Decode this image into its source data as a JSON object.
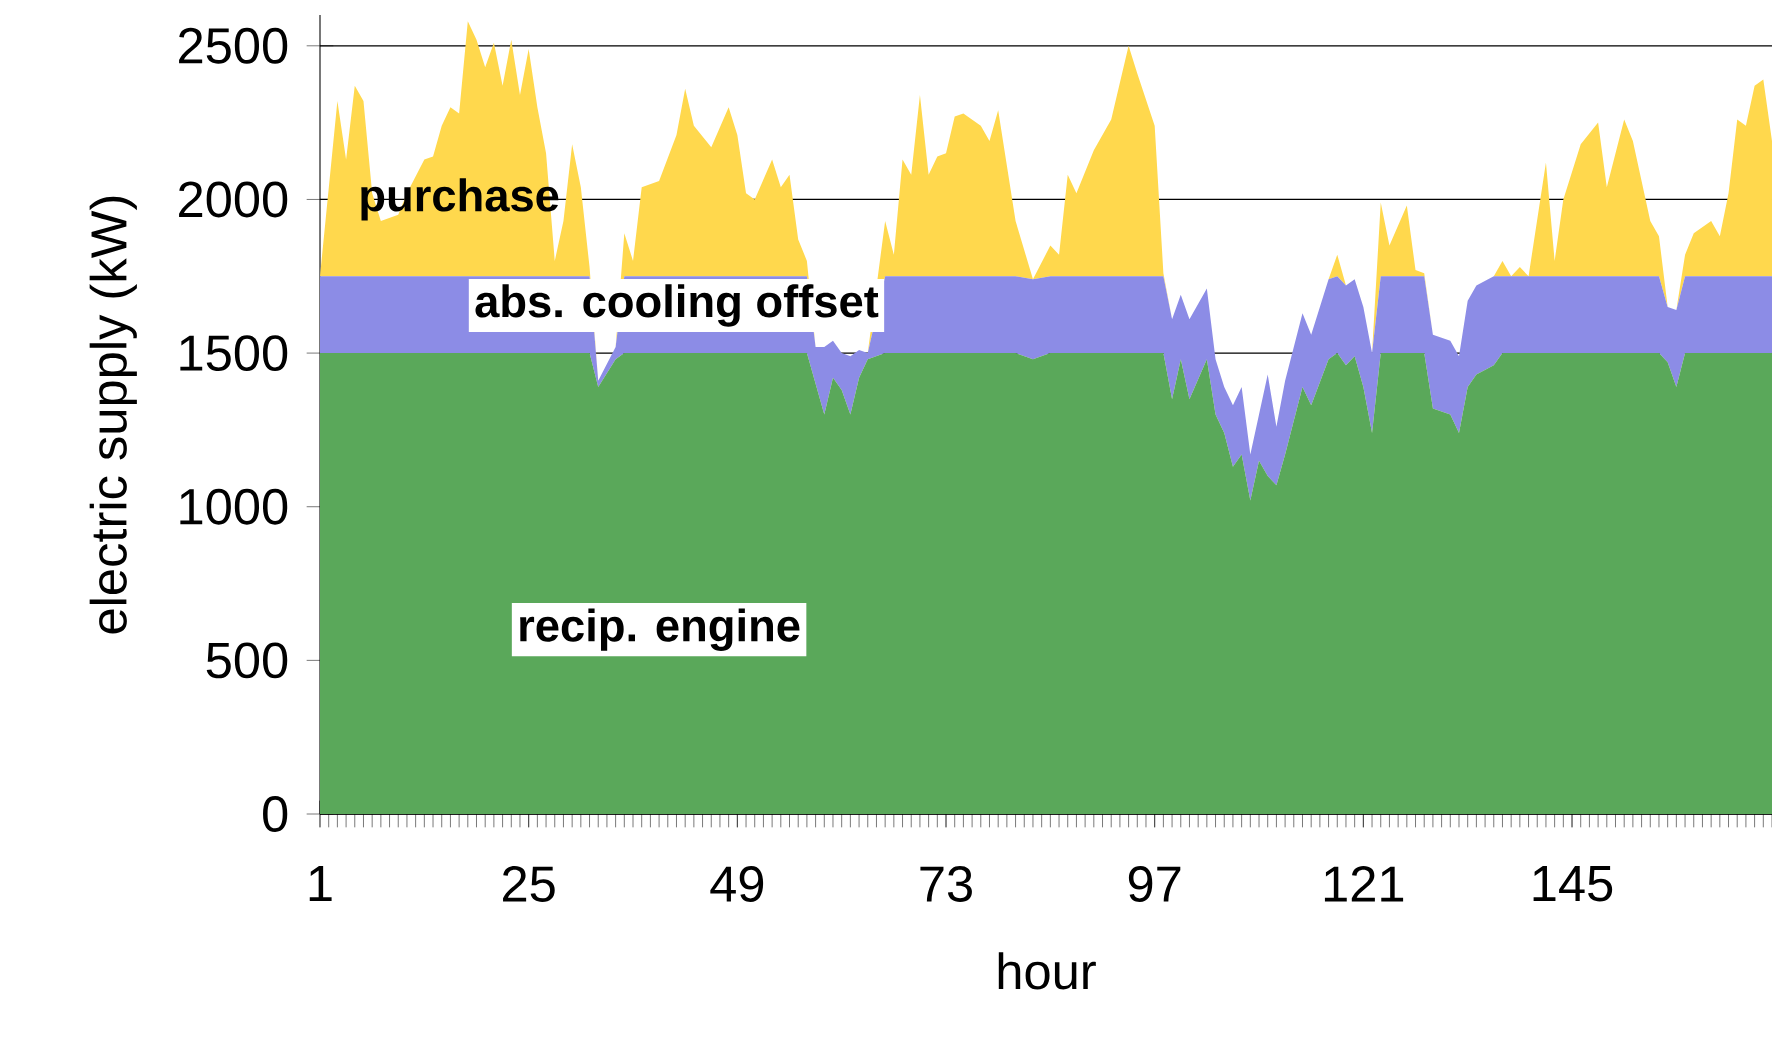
{
  "chart_data": {
    "type": "area",
    "stacked": true,
    "xlabel": "hour",
    "ylabel": "electric supply (kW)",
    "x": [
      1,
      3,
      4,
      5,
      6,
      7,
      8,
      10,
      11,
      13,
      14,
      15,
      16,
      17,
      18,
      19,
      20,
      21,
      22,
      23,
      24,
      25,
      26,
      27,
      28,
      29,
      30,
      31,
      32,
      33,
      35,
      36,
      37,
      38,
      40,
      42,
      43,
      44,
      46,
      48,
      49,
      50,
      51,
      53,
      54,
      55,
      56,
      57,
      58,
      59,
      60,
      61,
      62,
      63,
      64,
      66,
      67,
      68,
      69,
      70,
      71,
      72,
      73,
      74,
      75,
      77,
      78,
      79,
      81,
      83,
      85,
      86,
      87,
      88,
      90,
      92,
      94,
      95,
      97,
      98,
      99,
      100,
      101,
      103,
      104,
      105,
      106,
      107,
      108,
      109,
      110,
      111,
      112,
      114,
      115,
      117,
      118,
      119,
      120,
      121,
      122,
      123,
      124,
      126,
      127,
      128,
      129,
      131,
      132,
      133,
      134,
      136,
      137,
      138,
      139,
      140,
      142,
      143,
      144,
      146,
      148,
      149,
      151,
      152,
      154,
      155,
      156,
      157,
      158,
      159,
      161,
      162,
      163,
      164,
      165,
      166,
      167,
      168
    ],
    "series": [
      {
        "name": "recip. engine",
        "color": "#5aa85a",
        "values": [
          1500,
          1500,
          1500,
          1500,
          1500,
          1500,
          1500,
          1500,
          1500,
          1500,
          1500,
          1500,
          1500,
          1500,
          1500,
          1500,
          1500,
          1500,
          1500,
          1500,
          1500,
          1500,
          1500,
          1500,
          1500,
          1500,
          1500,
          1500,
          1500,
          1390,
          1480,
          1500,
          1500,
          1500,
          1500,
          1500,
          1500,
          1500,
          1500,
          1500,
          1500,
          1500,
          1500,
          1500,
          1500,
          1500,
          1500,
          1500,
          1400,
          1300,
          1420,
          1380,
          1300,
          1420,
          1480,
          1500,
          1500,
          1500,
          1500,
          1500,
          1500,
          1500,
          1500,
          1500,
          1500,
          1500,
          1500,
          1500,
          1500,
          1480,
          1500,
          1500,
          1500,
          1500,
          1500,
          1500,
          1500,
          1500,
          1500,
          1500,
          1350,
          1480,
          1350,
          1480,
          1300,
          1240,
          1130,
          1170,
          1020,
          1150,
          1100,
          1070,
          1170,
          1390,
          1330,
          1480,
          1500,
          1460,
          1490,
          1390,
          1240,
          1500,
          1500,
          1500,
          1500,
          1500,
          1320,
          1300,
          1240,
          1390,
          1430,
          1460,
          1500,
          1500,
          1500,
          1500,
          1500,
          1500,
          1500,
          1500,
          1500,
          1500,
          1500,
          1500,
          1500,
          1500,
          1470,
          1390,
          1500,
          1500,
          1500,
          1500,
          1500,
          1500,
          1500,
          1500,
          1500,
          1500
        ]
      },
      {
        "name": "abs. cooling offset",
        "color": "#8c8ce6",
        "values": [
          250,
          250,
          250,
          250,
          250,
          250,
          250,
          250,
          250,
          250,
          250,
          250,
          250,
          250,
          250,
          250,
          250,
          250,
          250,
          250,
          250,
          250,
          250,
          250,
          250,
          250,
          250,
          250,
          250,
          20,
          40,
          250,
          250,
          250,
          250,
          250,
          250,
          250,
          250,
          250,
          250,
          250,
          250,
          250,
          250,
          250,
          250,
          250,
          120,
          220,
          120,
          120,
          190,
          90,
          20,
          250,
          250,
          250,
          250,
          250,
          250,
          250,
          250,
          250,
          250,
          250,
          250,
          250,
          250,
          260,
          250,
          250,
          250,
          250,
          250,
          250,
          250,
          250,
          250,
          250,
          260,
          210,
          260,
          230,
          180,
          150,
          200,
          220,
          150,
          150,
          330,
          190,
          240,
          240,
          230,
          260,
          250,
          260,
          250,
          260,
          260,
          250,
          250,
          250,
          250,
          250,
          240,
          240,
          250,
          280,
          290,
          290,
          250,
          250,
          250,
          250,
          250,
          250,
          250,
          250,
          250,
          250,
          250,
          250,
          250,
          250,
          180,
          250,
          250,
          250,
          250,
          250,
          250,
          250,
          250,
          250,
          250,
          250
        ]
      },
      {
        "name": "purchase",
        "color": "#ffd84d",
        "values": [
          0,
          570,
          380,
          620,
          570,
          270,
          180,
          200,
          270,
          380,
          390,
          490,
          550,
          530,
          830,
          770,
          680,
          760,
          620,
          770,
          590,
          740,
          550,
          400,
          50,
          180,
          430,
          290,
          30,
          0,
          0,
          140,
          50,
          290,
          310,
          460,
          610,
          490,
          420,
          550,
          460,
          270,
          250,
          380,
          290,
          330,
          120,
          50,
          0,
          0,
          0,
          0,
          0,
          0,
          0,
          180,
          70,
          380,
          330,
          590,
          330,
          390,
          400,
          520,
          530,
          490,
          440,
          540,
          180,
          0,
          100,
          70,
          330,
          270,
          410,
          510,
          750,
          660,
          490,
          10,
          0,
          0,
          0,
          0,
          0,
          0,
          0,
          0,
          0,
          0,
          0,
          0,
          0,
          0,
          0,
          0,
          70,
          0,
          0,
          0,
          0,
          240,
          100,
          230,
          20,
          10,
          0,
          0,
          0,
          0,
          0,
          0,
          50,
          0,
          30,
          0,
          370,
          50,
          250,
          430,
          500,
          290,
          510,
          440,
          180,
          130,
          0,
          0,
          70,
          140,
          180,
          130,
          270,
          510,
          490,
          620,
          640,
          440
        ]
      }
    ],
    "xlim": [
      1,
      168
    ],
    "xticks": [
      1,
      25,
      49,
      73,
      97,
      121,
      145
    ],
    "ylim": [
      0,
      2600
    ],
    "yticks": [
      0,
      500,
      1000,
      1500,
      2000,
      2500
    ],
    "grid": "y"
  }
}
